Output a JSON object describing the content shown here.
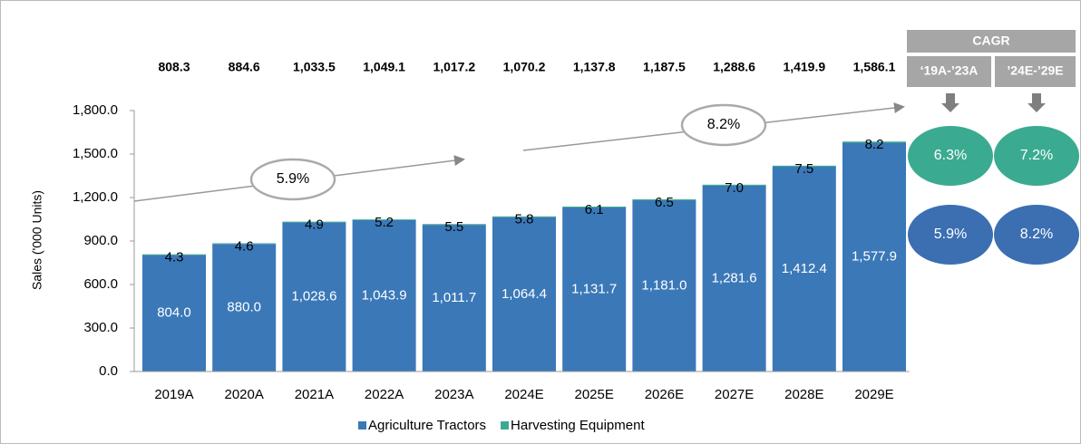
{
  "chart_data": {
    "type": "stacked_bar",
    "y_label": "Sales ('000 Units)",
    "categories": [
      "2019A",
      "2020A",
      "2021A",
      "2022A",
      "2023A",
      "2024E",
      "2025E",
      "2026E",
      "2027E",
      "2028E",
      "2029E"
    ],
    "series": [
      {
        "name": "Agriculture Tractors",
        "color": "#3b78b8",
        "values": [
          804.0,
          880.0,
          1028.6,
          1043.9,
          1011.7,
          1064.4,
          1131.7,
          1181.0,
          1281.6,
          1412.4,
          1577.9
        ],
        "value_labels": [
          "804.0",
          "880.0",
          "1,028.6",
          "1,043.9",
          "1,011.7",
          "1,064.4",
          "1,131.7",
          "1,181.0",
          "1,281.6",
          "1,412.4",
          "1,577.9"
        ]
      },
      {
        "name": "Harvesting Equipment",
        "color": "#3aab90",
        "values": [
          4.3,
          4.6,
          4.9,
          5.2,
          5.5,
          5.8,
          6.1,
          6.5,
          7.0,
          7.5,
          8.2
        ],
        "value_labels": [
          "4.3",
          "4.6",
          "4.9",
          "5.2",
          "5.5",
          "5.8",
          "6.1",
          "6.5",
          "7.0",
          "7.5",
          "8.2"
        ]
      }
    ],
    "totals": [
      "808.3",
      "884.6",
      "1,033.5",
      "1,049.1",
      "1,017.2",
      "1,070.2",
      "1,137.8",
      "1,187.5",
      "1,288.6",
      "1,419.9",
      "1,586.1"
    ],
    "ylim": [
      0,
      1800
    ],
    "yticks": [
      {
        "value": 0,
        "label": "0.0"
      },
      {
        "value": 300,
        "label": "300.0"
      },
      {
        "value": 600,
        "label": "600.0"
      },
      {
        "value": 900,
        "label": "900.0"
      },
      {
        "value": 1200,
        "label": "1,200.0"
      },
      {
        "value": 1500,
        "label": "1,500.0"
      },
      {
        "value": 1800,
        "label": "1,800.0"
      }
    ],
    "annotations": [
      "5.9%",
      "8.2%"
    ],
    "legend": "bottom"
  },
  "cagr": {
    "title": "CAGR",
    "columns": [
      "‘19A-’23A",
      "’24E-’29E"
    ],
    "rows": [
      {
        "color": "#3aab90",
        "values": [
          "6.3%",
          "7.2%"
        ]
      },
      {
        "color": "#3b6fb2",
        "values": [
          "5.9%",
          "8.2%"
        ]
      }
    ]
  }
}
